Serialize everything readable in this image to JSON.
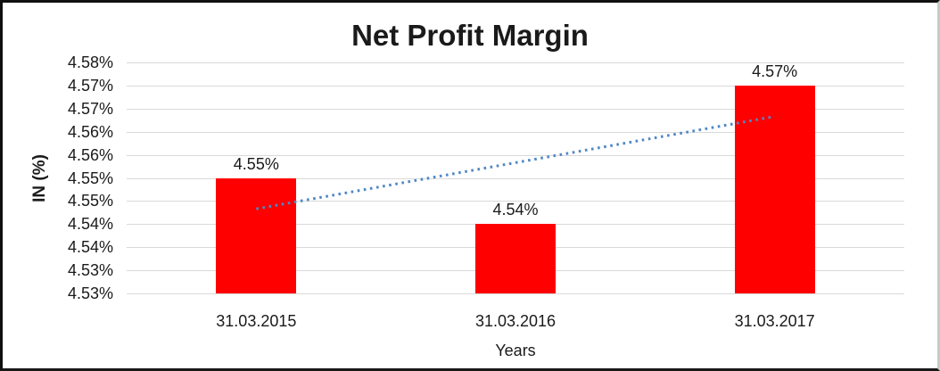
{
  "frame": {
    "background": "#ffffff",
    "border_dark": "#101010",
    "border_light": "#c9c9c9"
  },
  "chart_data": {
    "type": "bar",
    "title": "Net Profit Margin",
    "xlabel": "Years",
    "ylabel": "IN (%)",
    "categories": [
      "31.03.2015",
      "31.03.2016",
      "31.03.2017"
    ],
    "values": [
      4.55,
      4.54,
      4.57
    ],
    "bar_labels": [
      "4.55%",
      "4.54%",
      "4.57%"
    ],
    "unit": "percent",
    "ylim": [
      4.525,
      4.575
    ],
    "ytick_labels_top_to_bottom": [
      "4.58%",
      "4.57%",
      "4.57%",
      "4.56%",
      "4.56%",
      "4.55%",
      "4.55%",
      "4.54%",
      "4.54%",
      "4.53%",
      "4.53%"
    ],
    "grid": true,
    "legend": false,
    "bar_color": "#ff0000",
    "gridline_color": "#d9d9d9",
    "text_color": "#1a1a1a",
    "trendline": {
      "kind": "linear",
      "style": "dotted",
      "color": "#4f87c6",
      "start_value": 4.5433,
      "end_value": 4.5633
    }
  }
}
